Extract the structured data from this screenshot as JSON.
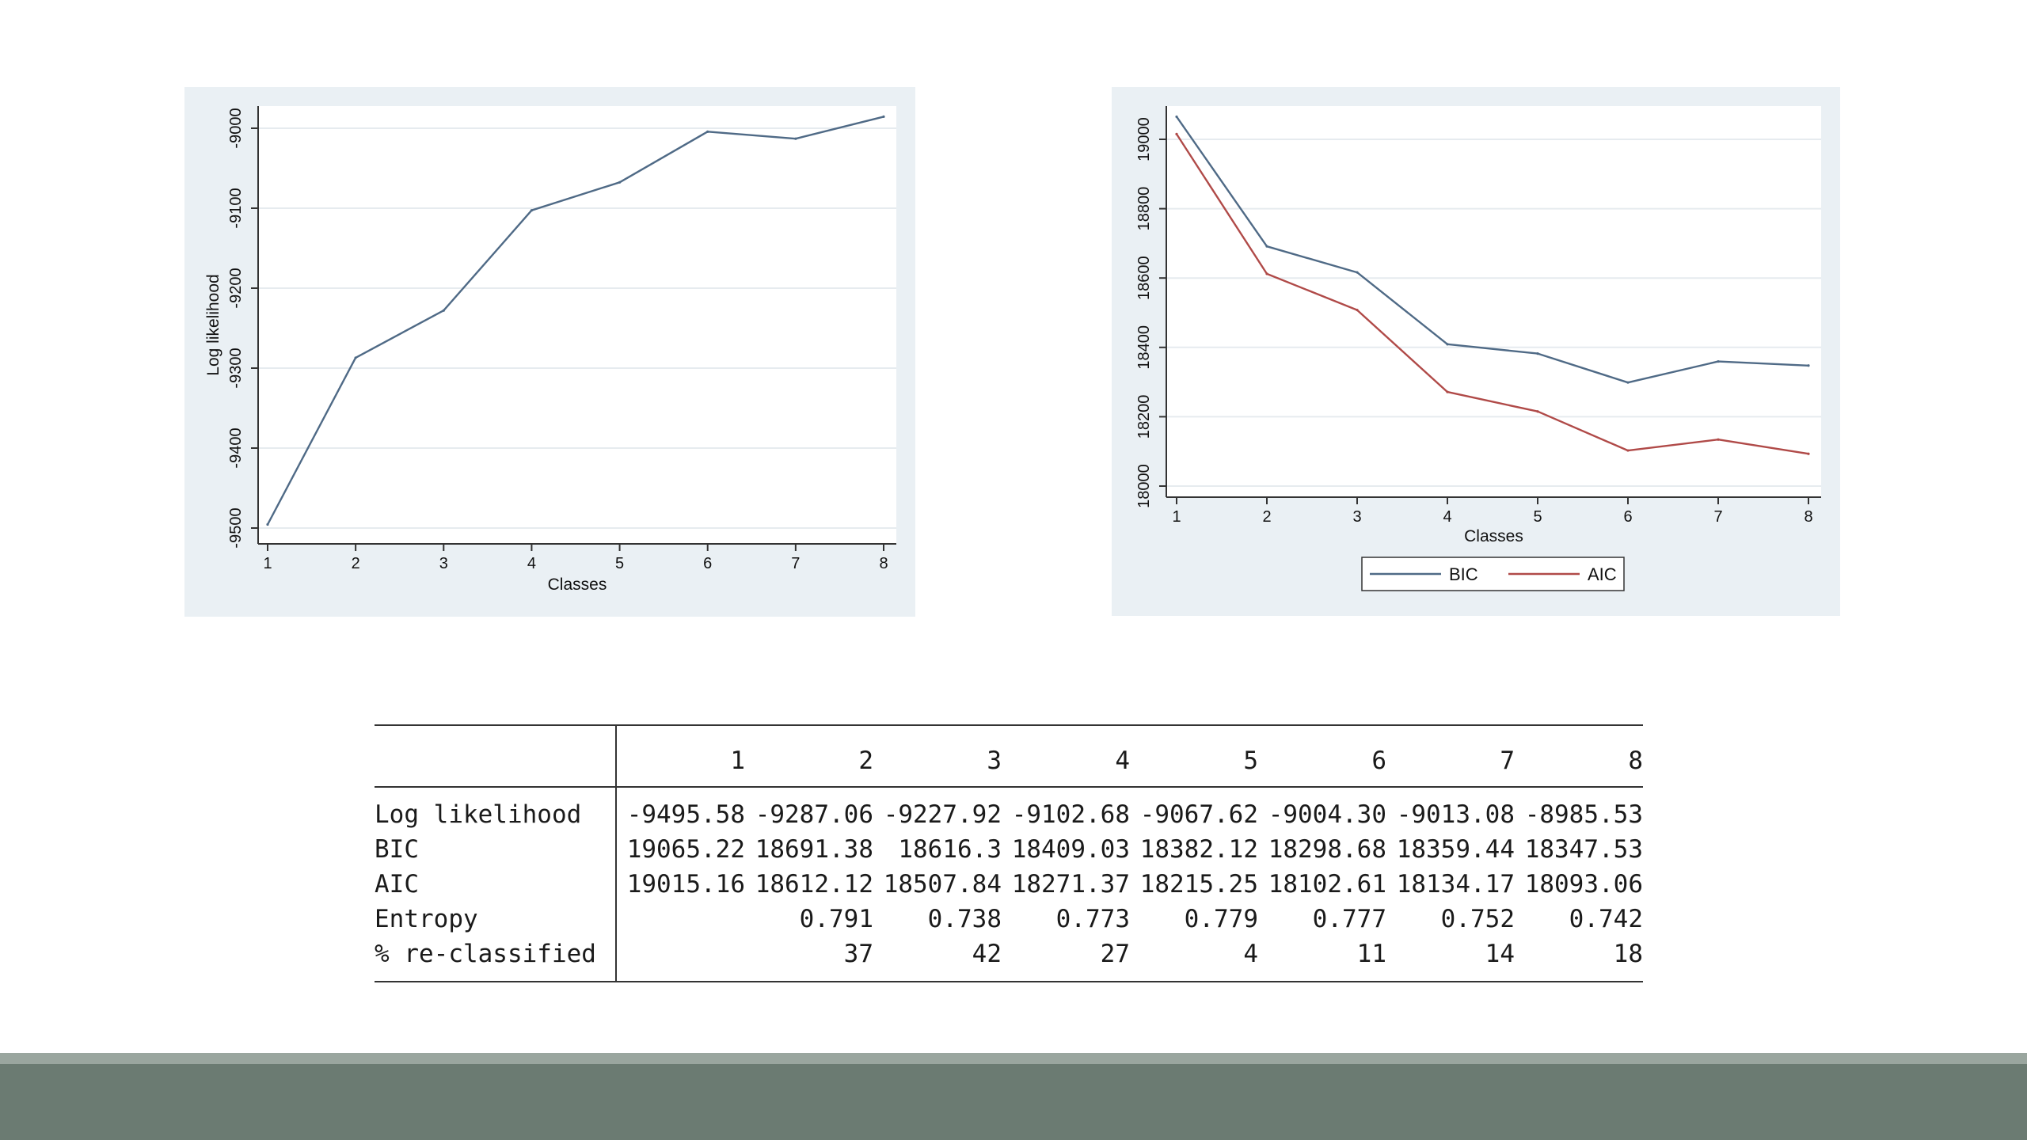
{
  "chart_data": [
    {
      "type": "line",
      "x": [
        1,
        2,
        3,
        4,
        5,
        6,
        7,
        8
      ],
      "series": [
        {
          "values": [
            -9495.58,
            -9287.06,
            -9227.92,
            -9102.68,
            -9067.62,
            -9004.3,
            -9013.08,
            -8985.53
          ],
          "color": "#4f6a86"
        }
      ],
      "xlabel": "Classes",
      "ylabel": "Log likelihood",
      "xticks": [
        "1",
        "2",
        "3",
        "4",
        "5",
        "6",
        "7",
        "8"
      ],
      "yticks": [
        -9500,
        -9400,
        -9300,
        -9200,
        -9100,
        -9000
      ],
      "ytick_labels": [
        "-9500",
        "-9400",
        "-9300",
        "-9200",
        "-9100",
        "-9000"
      ],
      "xlim": [
        1,
        8
      ],
      "ylim": [
        -9500,
        -9000
      ],
      "grid": true
    },
    {
      "type": "line",
      "x": [
        1,
        2,
        3,
        4,
        5,
        6,
        7,
        8
      ],
      "series": [
        {
          "name": "BIC",
          "values": [
            19065.22,
            18691.38,
            18616.3,
            18409.03,
            18382.12,
            18298.68,
            18359.44,
            18347.53
          ],
          "color": "#4f6a86"
        },
        {
          "name": "AIC",
          "values": [
            19015.16,
            18612.12,
            18507.84,
            18271.37,
            18215.25,
            18102.61,
            18134.17,
            18093.06
          ],
          "color": "#b04a48"
        }
      ],
      "xlabel": "Classes",
      "ylabel": "",
      "xticks": [
        "1",
        "2",
        "3",
        "4",
        "5",
        "6",
        "7",
        "8"
      ],
      "yticks": [
        18000,
        18200,
        18400,
        18600,
        18800,
        19000
      ],
      "ytick_labels": [
        "18000",
        "18200",
        "18400",
        "18600",
        "18800",
        "19000"
      ],
      "xlim": [
        1,
        8
      ],
      "ylim": [
        18000,
        19000
      ],
      "grid": true,
      "legend": "bottom-center"
    }
  ],
  "table": {
    "columns": [
      "1",
      "2",
      "3",
      "4",
      "5",
      "6",
      "7",
      "8"
    ],
    "rows": [
      {
        "label": "Log likelihood",
        "values": [
          "-9495.58",
          "-9287.06",
          "-9227.92",
          "-9102.68",
          "-9067.62",
          "-9004.30",
          "-9013.08",
          "-8985.53"
        ]
      },
      {
        "label": "BIC",
        "values": [
          "19065.22",
          "18691.38",
          "18616.3",
          "18409.03",
          "18382.12",
          "18298.68",
          "18359.44",
          "18347.53"
        ]
      },
      {
        "label": "AIC",
        "values": [
          "19015.16",
          "18612.12",
          "18507.84",
          "18271.37",
          "18215.25",
          "18102.61",
          "18134.17",
          "18093.06"
        ]
      },
      {
        "label": "Entropy",
        "values": [
          "",
          "0.791",
          "0.738",
          "0.773",
          "0.779",
          "0.777",
          "0.752",
          "0.742"
        ]
      },
      {
        "label": "% re-classified",
        "values": [
          "",
          "37",
          "42",
          "27",
          "4",
          "11",
          "14",
          "18"
        ]
      }
    ]
  }
}
